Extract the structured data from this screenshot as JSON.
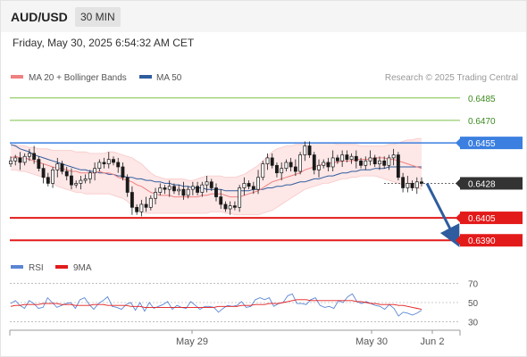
{
  "header": {
    "pair": "AUD/USD",
    "timeframe": "30 MIN",
    "datetime": "Friday, May 30, 2025 6:54:32 AM CET"
  },
  "legend": {
    "ma20": "MA 20 + Bollinger Bands",
    "ma50": "MA 50",
    "credit": "Research © 2025 Trading Central"
  },
  "rsi_legend": {
    "rsi": "RSI",
    "ma9": "9MA"
  },
  "colors": {
    "ma20": "#f08080",
    "ma50": "#2f5c9e",
    "resistance_green": "#7bc147",
    "pivot_blue": "#3b7fe0",
    "support_red": "#e31a1a",
    "rsi": "#5b86d4",
    "rsi_ma": "#e31a1a",
    "bands_fill": "#fde3e3",
    "candle_up": "#ffffff",
    "candle_down": "#1a1a1a"
  },
  "chart_data": [
    {
      "type": "candlestick",
      "ylim": [
        0.6383,
        0.6492
      ],
      "x_labels": [
        "May 29",
        "May 30",
        "Jun 2"
      ],
      "levels": [
        {
          "value": 0.6485,
          "label": "0.6485",
          "kind": "resistance",
          "color": "#7bc147"
        },
        {
          "value": 0.647,
          "label": "0.6470",
          "kind": "resistance",
          "color": "#7bc147"
        },
        {
          "value": 0.6455,
          "label": "0.6455",
          "kind": "pivot",
          "color": "#3b7fe0"
        },
        {
          "value": 0.6428,
          "label": "0.6428",
          "kind": "last_price",
          "color": "#333333"
        },
        {
          "value": 0.6405,
          "label": "0.6405",
          "kind": "support",
          "color": "#e31a1a"
        },
        {
          "value": 0.639,
          "label": "0.6390",
          "kind": "support",
          "color": "#e31a1a"
        }
      ],
      "close": [
        0.6443,
        0.6445,
        0.6442,
        0.6446,
        0.6448,
        0.6444,
        0.6438,
        0.6432,
        0.6428,
        0.6437,
        0.6441,
        0.6436,
        0.6433,
        0.6427,
        0.6428,
        0.643,
        0.6431,
        0.6435,
        0.6438,
        0.6442,
        0.6441,
        0.6444,
        0.6442,
        0.6439,
        0.6432,
        0.6422,
        0.6412,
        0.6409,
        0.6414,
        0.6412,
        0.6418,
        0.6422,
        0.6425,
        0.6424,
        0.6426,
        0.6423,
        0.6424,
        0.642,
        0.6424,
        0.6426,
        0.6422,
        0.6427,
        0.6429,
        0.6425,
        0.6419,
        0.6414,
        0.6411,
        0.6413,
        0.6412,
        0.6425,
        0.6428,
        0.6426,
        0.6424,
        0.6432,
        0.6441,
        0.6445,
        0.644,
        0.6435,
        0.6438,
        0.6442,
        0.6439,
        0.6436,
        0.6447,
        0.6453,
        0.6447,
        0.6437,
        0.644,
        0.6442,
        0.6439,
        0.6445,
        0.6443,
        0.6447,
        0.6444,
        0.6446,
        0.6443,
        0.644,
        0.6443,
        0.6445,
        0.6441,
        0.6443,
        0.644,
        0.6445,
        0.6447,
        0.6432,
        0.6425,
        0.6428,
        0.6425,
        0.6429,
        0.6428
      ],
      "ma20": [
        0.6445,
        0.6446,
        0.6445,
        0.6445,
        0.6444,
        0.6443,
        0.6442,
        0.6441,
        0.644,
        0.6439,
        0.6438,
        0.6438,
        0.6437,
        0.6436,
        0.6436,
        0.6435,
        0.6435,
        0.6435,
        0.6435,
        0.6436,
        0.6435,
        0.6435,
        0.6434,
        0.6432,
        0.6431,
        0.643,
        0.6429,
        0.6427,
        0.6426,
        0.6424,
        0.6422,
        0.6421,
        0.642,
        0.642,
        0.642,
        0.6419,
        0.6419,
        0.6419,
        0.6419,
        0.6419,
        0.6419,
        0.642,
        0.642,
        0.6421,
        0.6421,
        0.6421,
        0.642,
        0.6419,
        0.6419,
        0.6419,
        0.642,
        0.6421,
        0.6422,
        0.6423,
        0.6425,
        0.6427,
        0.6429,
        0.643,
        0.6431,
        0.6432,
        0.6433,
        0.6434,
        0.6435,
        0.6437,
        0.6438,
        0.6439,
        0.644,
        0.6441,
        0.6441,
        0.6442,
        0.6442,
        0.6443,
        0.6443,
        0.6443,
        0.6444,
        0.6444,
        0.6444,
        0.6444,
        0.6445,
        0.6445,
        0.6445,
        0.6444,
        0.6444,
        0.6443,
        0.6442,
        0.6441,
        0.644,
        0.6439,
        0.6438
      ],
      "ma50": [
        0.6454,
        0.6453,
        0.6451,
        0.645,
        0.6449,
        0.6447,
        0.6446,
        0.6445,
        0.6444,
        0.6443,
        0.6442,
        0.6441,
        0.644,
        0.6439,
        0.6438,
        0.6437,
        0.6437,
        0.6436,
        0.6436,
        0.6435,
        0.6435,
        0.6434,
        0.6434,
        0.6433,
        0.6433,
        0.6432,
        0.6432,
        0.6431,
        0.6431,
        0.643,
        0.643,
        0.6429,
        0.6429,
        0.6428,
        0.6428,
        0.6427,
        0.6427,
        0.6426,
        0.6426,
        0.6425,
        0.6425,
        0.6425,
        0.6424,
        0.6424,
        0.6424,
        0.6424,
        0.6423,
        0.6423,
        0.6423,
        0.6423,
        0.6423,
        0.6423,
        0.6424,
        0.6424,
        0.6424,
        0.6425,
        0.6425,
        0.6426,
        0.6426,
        0.6427,
        0.6427,
        0.6428,
        0.6429,
        0.6429,
        0.643,
        0.6431,
        0.6431,
        0.6432,
        0.6433,
        0.6433,
        0.6434,
        0.6435,
        0.6435,
        0.6436,
        0.6436,
        0.6437,
        0.6437,
        0.6437,
        0.6438,
        0.6438,
        0.6438,
        0.6439,
        0.6439,
        0.6439,
        0.6439,
        0.6439,
        0.6439,
        0.6439,
        0.6439
      ],
      "bb_upper": [
        0.6453,
        0.6454,
        0.6453,
        0.6453,
        0.6452,
        0.6452,
        0.6451,
        0.6451,
        0.6451,
        0.645,
        0.645,
        0.645,
        0.645,
        0.645,
        0.6449,
        0.6449,
        0.6449,
        0.6448,
        0.6448,
        0.6448,
        0.6448,
        0.6449,
        0.6449,
        0.6448,
        0.6447,
        0.6446,
        0.6445,
        0.6443,
        0.6441,
        0.6438,
        0.6435,
        0.6433,
        0.6432,
        0.6431,
        0.6431,
        0.6431,
        0.6431,
        0.6431,
        0.643,
        0.643,
        0.6431,
        0.6432,
        0.6433,
        0.6433,
        0.6433,
        0.6433,
        0.6432,
        0.6432,
        0.6432,
        0.6433,
        0.6434,
        0.6436,
        0.6438,
        0.644,
        0.6443,
        0.6446,
        0.6449,
        0.6451,
        0.6452,
        0.6453,
        0.6453,
        0.6454,
        0.6454,
        0.6455,
        0.6455,
        0.6455,
        0.6455,
        0.6455,
        0.6455,
        0.6455,
        0.6454,
        0.6454,
        0.6454,
        0.6454,
        0.6454,
        0.6453,
        0.6453,
        0.6453,
        0.6453,
        0.6453,
        0.6453,
        0.6454,
        0.6454,
        0.6455,
        0.6456,
        0.6457,
        0.6457,
        0.6458,
        0.6458
      ],
      "bb_lower": [
        0.6437,
        0.6437,
        0.6436,
        0.6436,
        0.6435,
        0.6434,
        0.6433,
        0.6432,
        0.643,
        0.6428,
        0.6426,
        0.6425,
        0.6424,
        0.6423,
        0.6422,
        0.6422,
        0.6421,
        0.6421,
        0.6421,
        0.6421,
        0.6421,
        0.6421,
        0.642,
        0.6419,
        0.6418,
        0.6416,
        0.6413,
        0.641,
        0.6409,
        0.6408,
        0.6408,
        0.6408,
        0.6408,
        0.6408,
        0.6408,
        0.6408,
        0.6408,
        0.6408,
        0.6408,
        0.6408,
        0.6408,
        0.6408,
        0.6408,
        0.6409,
        0.6409,
        0.6409,
        0.6408,
        0.6408,
        0.6407,
        0.6407,
        0.6407,
        0.6407,
        0.6407,
        0.6407,
        0.6408,
        0.6409,
        0.641,
        0.6412,
        0.6414,
        0.6416,
        0.6418,
        0.642,
        0.6422,
        0.6424,
        0.6425,
        0.6426,
        0.6427,
        0.6428,
        0.6428,
        0.6429,
        0.643,
        0.6431,
        0.6431,
        0.6432,
        0.6432,
        0.6433,
        0.6433,
        0.6433,
        0.6433,
        0.6432,
        0.6431,
        0.643,
        0.6429,
        0.6428,
        0.6427,
        0.6426,
        0.6425,
        0.6425,
        0.6424
      ],
      "projection": {
        "from": 0.6428,
        "to": 0.639
      }
    },
    {
      "type": "line",
      "ylim": [
        25,
        75
      ],
      "ticks": [
        70,
        50,
        30
      ],
      "series": [
        {
          "name": "RSI",
          "values": [
            49,
            52,
            47,
            44,
            52,
            49,
            44,
            45,
            55,
            50,
            45,
            47,
            49,
            50,
            44,
            53,
            55,
            48,
            43,
            49,
            52,
            56,
            46,
            45,
            43,
            48,
            50,
            42,
            50,
            41,
            50,
            44,
            46,
            48,
            51,
            43,
            47,
            45,
            44,
            51,
            47,
            43,
            46,
            46,
            45,
            40,
            44,
            47,
            46,
            47,
            51,
            45,
            46,
            53,
            55,
            53,
            55,
            46,
            49,
            50,
            57,
            59,
            49,
            49,
            48,
            53,
            55,
            47,
            45,
            46,
            44,
            52,
            50,
            56,
            59,
            51,
            49,
            51,
            49,
            47,
            46,
            43,
            48,
            44,
            36,
            40,
            39,
            37,
            39,
            42
          ]
        },
        {
          "name": "9MA",
          "values": [
            46,
            47,
            47,
            48,
            48,
            48,
            48,
            49,
            49,
            49,
            49,
            48,
            48,
            48,
            47,
            47,
            47,
            47,
            48,
            48,
            48,
            47,
            47,
            47,
            47,
            47,
            46,
            46,
            46,
            45,
            45,
            45,
            45,
            45,
            45,
            45,
            45,
            45,
            45,
            45,
            45,
            45,
            45,
            45,
            45,
            46,
            46,
            46,
            46,
            46,
            47,
            47,
            47,
            48,
            48,
            48,
            49,
            49,
            49,
            50,
            51,
            52,
            53,
            53,
            53,
            52,
            52,
            52,
            52,
            52,
            52,
            52,
            52,
            52,
            52,
            51,
            51,
            50,
            49,
            49,
            48,
            48,
            48,
            48,
            47,
            47,
            46,
            45,
            44,
            43
          ]
        }
      ]
    }
  ]
}
